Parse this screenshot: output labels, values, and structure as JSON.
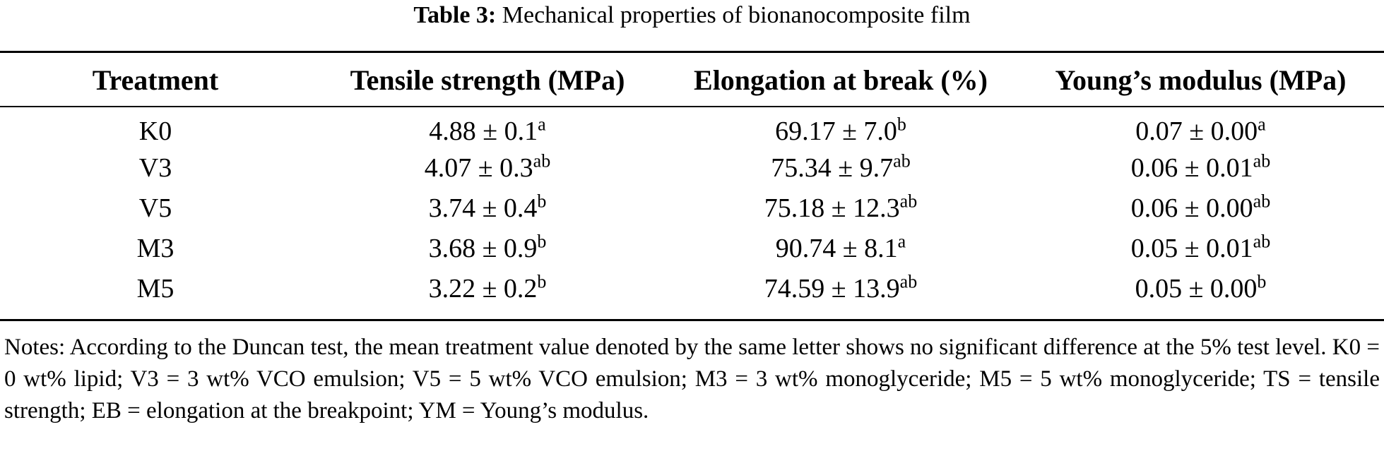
{
  "caption": {
    "label": "Table 3:",
    "title": "Mechanical properties of bionanocomposite film"
  },
  "table": {
    "headers": [
      "Treatment",
      "Tensile strength (MPa)",
      "Elongation at break (%)",
      "Young’s modulus (MPa)"
    ],
    "rows": [
      {
        "treatment": "K0",
        "ts": {
          "value": "4.88 ± 0.1",
          "sup": "a"
        },
        "eb": {
          "value": "69.17 ± 7.0",
          "sup": "b"
        },
        "ym": {
          "value": "0.07 ± 0.00",
          "sup": "a"
        }
      },
      {
        "treatment": "V3",
        "ts": {
          "value": "4.07 ± 0.3",
          "sup": "ab"
        },
        "eb": {
          "value": "75.34 ± 9.7",
          "sup": "ab"
        },
        "ym": {
          "value": "0.06 ± 0.01",
          "sup": "ab"
        }
      },
      {
        "treatment": "V5",
        "ts": {
          "value": "3.74 ± 0.4",
          "sup": "b"
        },
        "eb": {
          "value": "75.18 ± 12.3",
          "sup": "ab"
        },
        "ym": {
          "value": "0.06 ± 0.00",
          "sup": "ab"
        }
      },
      {
        "treatment": "M3",
        "ts": {
          "value": "3.68 ± 0.9",
          "sup": "b"
        },
        "eb": {
          "value": "90.74 ± 8.1",
          "sup": "a"
        },
        "ym": {
          "value": "0.05 ± 0.01",
          "sup": "ab"
        }
      },
      {
        "treatment": "M5",
        "ts": {
          "value": "3.22 ± 0.2",
          "sup": "b"
        },
        "eb": {
          "value": "74.59 ± 13.9",
          "sup": "ab"
        },
        "ym": {
          "value": "0.05 ± 0.00",
          "sup": "b"
        }
      }
    ]
  },
  "notes": "Notes: According to the Duncan test, the mean treatment value denoted by the same letter shows no significant difference at the 5% test level. K0 = 0 wt% lipid; V3 = 3 wt% VCO emulsion; V5 = 5 wt% VCO emulsion; M3 = 3 wt% monoglyceride; M5 = 5 wt% monoglyceride; TS = tensile strength; EB = elongation at the breakpoint; YM = Young’s modulus."
}
